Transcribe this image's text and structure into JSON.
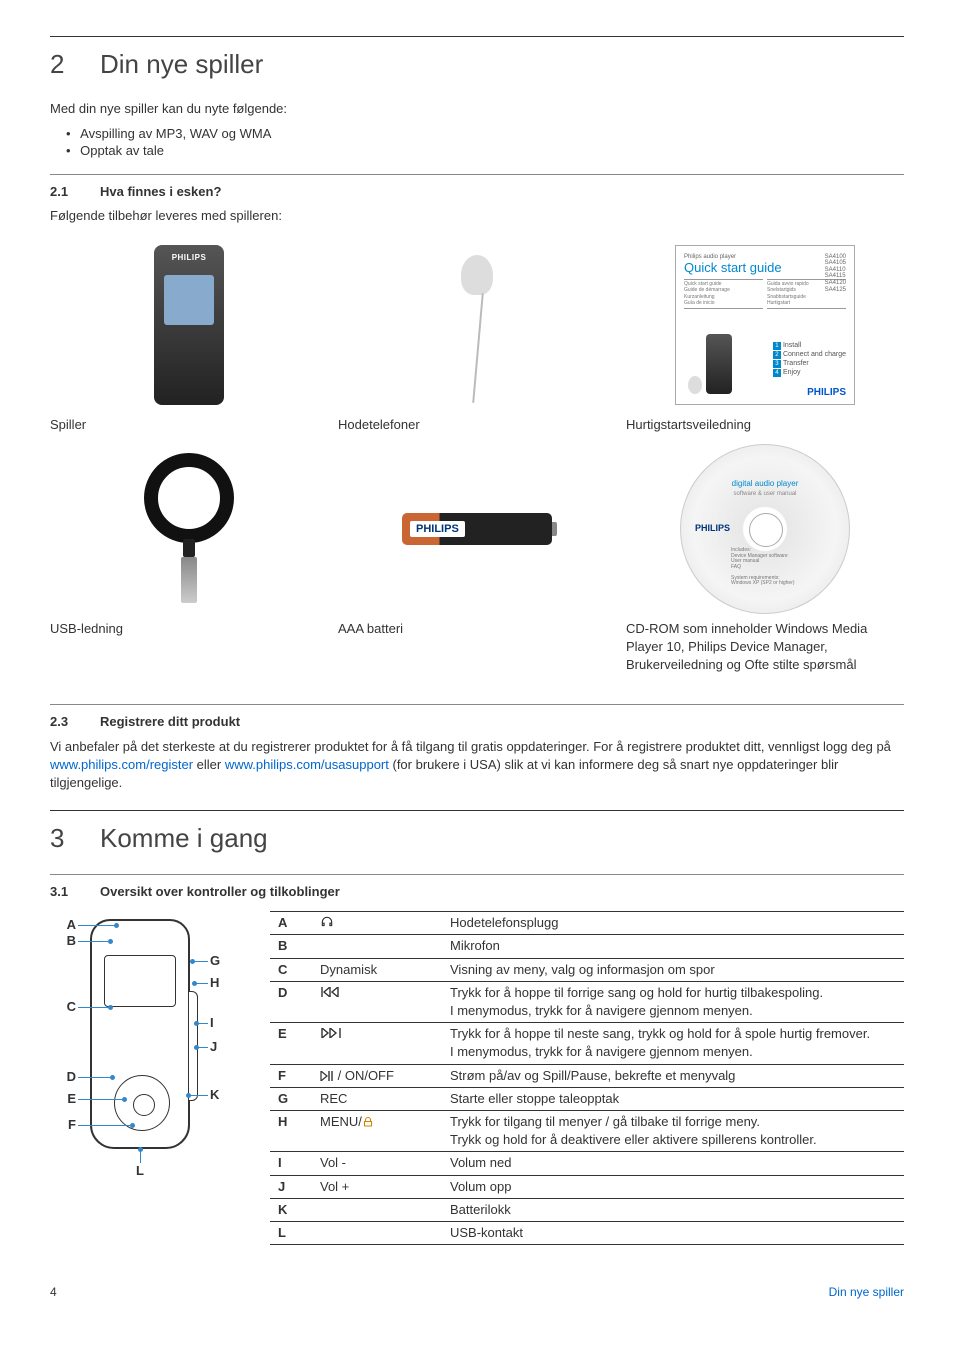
{
  "section2": {
    "number": "2",
    "title": "Din nye spiller",
    "intro": "Med din nye spiller kan du nyte følgende:",
    "bullets": [
      "Avspilling av MP3, WAV og WMA",
      "Opptak av tale"
    ],
    "sub21_num": "2.1",
    "sub21_title": "Hva finnes i esken?",
    "sub21_intro": "Følgende tilbehør leveres med spilleren:",
    "box_items": {
      "player": "Spiller",
      "headphones": "Hodetelefoner",
      "guide": "Hurtigstartsveiledning",
      "usb": "USB-ledning",
      "battery": "AAA batteri",
      "cdrom": "CD-ROM som inneholder Windows Media Player 10, Philips Device Manager, Brukerveiledning og Ofte stilte spørsmål"
    },
    "guide_thumb": {
      "header": "Philips audio player",
      "title": "Quick start guide",
      "models": [
        "SA4100",
        "SA4105",
        "SA4110",
        "SA4115",
        "SA4120",
        "SA4125"
      ],
      "steps": [
        {
          "n": "1",
          "t": "Install"
        },
        {
          "n": "2",
          "t": "Connect and charge"
        },
        {
          "n": "3",
          "t": "Transfer"
        },
        {
          "n": "4",
          "t": "Enjoy"
        }
      ],
      "brand": "PHILIPS"
    },
    "cd_thumb": {
      "title1": "digital audio player",
      "title2": "software & user manual",
      "brand": "PHILIPS"
    },
    "battery_brand": "PHILIPS",
    "sub23_num": "2.3",
    "sub23_title": "Registrere ditt produkt",
    "sub23_text_1": "Vi anbefaler på det sterkeste at du registrerer produktet for å få tilgang til gratis oppdateringer. For å registrere produktet ditt, vennligst logg deg på ",
    "link1": "www.philips.com/register",
    "sub23_text_2": " eller ",
    "link2": "www.philips.com/usasupport",
    "sub23_text_3": " (for brukere i USA) slik at vi kan informere deg så snart nye oppdateringer blir tilgjengelige."
  },
  "section3": {
    "number": "3",
    "title": "Komme i gang",
    "sub31_num": "3.1",
    "sub31_title": "Oversikt over kontroller og tilkoblinger"
  },
  "diagram_letters": [
    "A",
    "B",
    "C",
    "D",
    "E",
    "F",
    "G",
    "H",
    "I",
    "J",
    "K",
    "L"
  ],
  "controls_table": [
    {
      "l": "A",
      "s": "headphone",
      "d": "Hodetelefonsplugg"
    },
    {
      "l": "B",
      "s": "",
      "d": "Mikrofon"
    },
    {
      "l": "C",
      "s": "Dynamisk",
      "d": "Visning av meny, valg og informasjon om spor"
    },
    {
      "l": "D",
      "s": "prev",
      "d": "Trykk for å hoppe til forrige sang og hold for hurtig tilbakespoling. I menymodus, trykk for å navigere gjennom menyen."
    },
    {
      "l": "E",
      "s": "next",
      "d": "Trykk for å hoppe til neste sang, trykk og hold for å spole hurtig fremover. I menymodus, trykk for å navigere gjennom menyen."
    },
    {
      "l": "F",
      "s": "playonoff",
      "d": "Strøm på/av og Spill/Pause, bekrefte et menyvalg"
    },
    {
      "l": "G",
      "s": "REC",
      "d": "Starte eller stoppe taleopptak"
    },
    {
      "l": "H",
      "s": "menulock",
      "d": "Trykk for tilgang til menyer / gå tilbake til forrige meny. Trykk og hold for å deaktivere eller aktivere spillerens kontroller."
    },
    {
      "l": "I",
      "s": "Vol -",
      "d": "Volum ned"
    },
    {
      "l": "J",
      "s": "Vol +",
      "d": "Volum opp"
    },
    {
      "l": "K",
      "s": "",
      "d": "Batterilokk"
    },
    {
      "l": "L",
      "s": "",
      "d": "USB-kontakt"
    }
  ],
  "symbol_text": {
    "playonoff": " / ON/OFF",
    "menulock": "MENU/"
  },
  "footer": {
    "page": "4",
    "label": "Din nye spiller"
  },
  "colors": {
    "link": "#0066cc",
    "callout_line": "#3388cc",
    "brand_blue": "#003478",
    "guide_accent": "#0088cc",
    "lock": "#cc8800"
  }
}
